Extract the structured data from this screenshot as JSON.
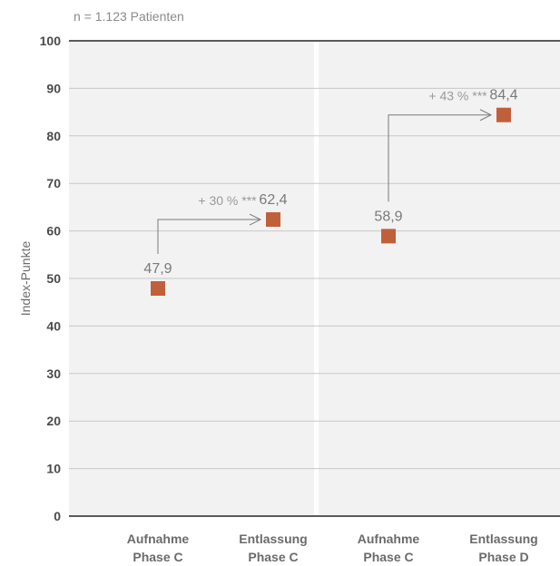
{
  "chart_data": {
    "type": "scatter",
    "note": "n = 1.123 Patienten",
    "ylabel": "Index-Punkte",
    "ylim": [
      0,
      100
    ],
    "yticks": [
      "0",
      "10",
      "20",
      "30",
      "40",
      "50",
      "60",
      "70",
      "80",
      "90",
      "100"
    ],
    "grid": true,
    "categories": [
      [
        "Aufnahme",
        "Phase C"
      ],
      [
        "Entlassung",
        "Phase C"
      ],
      [
        "Aufnahme",
        "Phase C"
      ],
      [
        "Entlassung",
        "Phase D"
      ]
    ],
    "values": [
      47.9,
      62.4,
      58.9,
      84.4
    ],
    "value_labels": [
      "47,9",
      "62,4",
      "58,9",
      "84,4"
    ],
    "annotations": [
      {
        "from": 0,
        "to": 1,
        "label": "+ 30 % ***"
      },
      {
        "from": 2,
        "to": 3,
        "label": "+ 43 % ***"
      }
    ],
    "colors": {
      "marker": "#c0603b",
      "panel": "#f2f2f2",
      "grid": "#c8c8c8",
      "axis": "#5a5a5a",
      "arrow": "#7a7a7a"
    }
  }
}
